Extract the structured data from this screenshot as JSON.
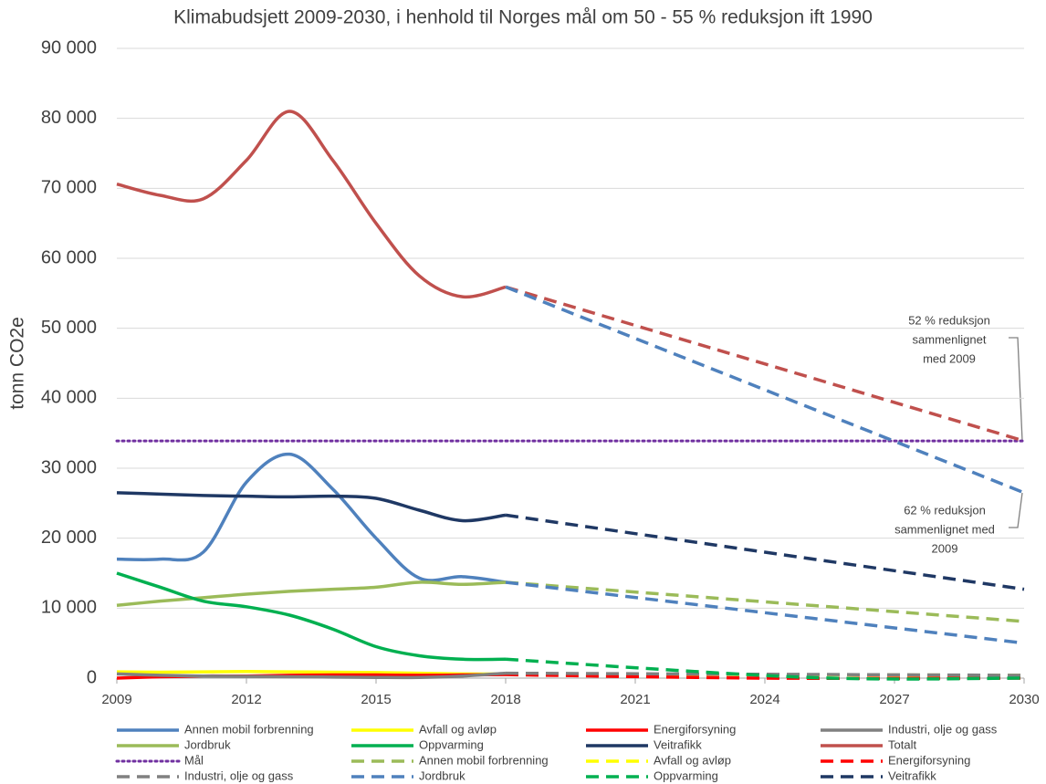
{
  "chart_data": {
    "type": "line",
    "title": "Klimabudsjett 2009-2030, i henhold til Norges mål om 50 - 55 % reduksjon ift 1990",
    "y_label": "tonn CO2e",
    "xlim": [
      2009,
      2030
    ],
    "xticks": [
      2009,
      2012,
      2015,
      2018,
      2021,
      2024,
      2027,
      2030
    ],
    "ylim": [
      0,
      90000
    ],
    "yticks": [
      0,
      {
        "value": 10000,
        "label": "10 000"
      },
      {
        "value": 20000,
        "label": "20 000"
      },
      {
        "value": 30000,
        "label": "30 000"
      },
      {
        "value": 40000,
        "label": "40 000"
      },
      {
        "value": 50000,
        "label": "50 000"
      },
      {
        "value": 60000,
        "label": "60 000"
      },
      {
        "value": 70000,
        "label": "70 000"
      },
      {
        "value": 80000,
        "label": "80 000"
      },
      {
        "value": 90000,
        "label": "90 000"
      }
    ],
    "grid": true,
    "annotations": [
      {
        "lines": [
          "52 % reduksjon",
          "sammenlignet",
          "med 2009"
        ]
      },
      {
        "lines": [
          "62 % reduksjon",
          "sammenlignet med",
          "2009"
        ]
      }
    ],
    "series": [
      {
        "name": "Annen mobil forbrenning",
        "color": "#4f81bd",
        "style": "solid",
        "x": [
          2009,
          2010,
          2011,
          2012,
          2013,
          2014,
          2015,
          2016,
          2017,
          2018
        ],
        "values": [
          17000,
          17000,
          18000,
          28000,
          32000,
          27000,
          20000,
          14300,
          14500,
          13700
        ]
      },
      {
        "name": "Avfall og avløp",
        "color": "#ffff00",
        "style": "solid",
        "x": [
          2009,
          2010,
          2011,
          2012,
          2013,
          2014,
          2015,
          2016,
          2017,
          2018
        ],
        "values": [
          900,
          850,
          900,
          950,
          900,
          850,
          800,
          700,
          600,
          600
        ]
      },
      {
        "name": "Energiforsyning",
        "color": "#ff0000",
        "style": "solid",
        "x": [
          2009,
          2010,
          2011,
          2012,
          2013,
          2014,
          2015,
          2016,
          2017,
          2018
        ],
        "values": [
          0,
          200,
          300,
          300,
          400,
          450,
          450,
          400,
          450,
          500
        ]
      },
      {
        "name": "Industri, olje og gass",
        "color": "#808080",
        "style": "solid",
        "x": [
          2009,
          2010,
          2011,
          2012,
          2013,
          2014,
          2015,
          2016,
          2017,
          2018
        ],
        "values": [
          600,
          400,
          300,
          250,
          200,
          150,
          100,
          100,
          300,
          700
        ]
      },
      {
        "name": "Jordbruk",
        "color": "#9bbb59",
        "style": "solid",
        "x": [
          2009,
          2010,
          2011,
          2012,
          2013,
          2014,
          2015,
          2016,
          2017,
          2018
        ],
        "values": [
          10400,
          11000,
          11500,
          12000,
          12400,
          12700,
          13000,
          13700,
          13400,
          13700
        ]
      },
      {
        "name": "Oppvarming",
        "color": "#00b050",
        "style": "solid",
        "x": [
          2009,
          2010,
          2011,
          2012,
          2013,
          2014,
          2015,
          2016,
          2017,
          2018
        ],
        "values": [
          15000,
          13000,
          11000,
          10200,
          9000,
          7000,
          4500,
          3200,
          2700,
          2700
        ]
      },
      {
        "name": "Veitrafikk",
        "color": "#1f3864",
        "style": "solid",
        "x": [
          2009,
          2010,
          2011,
          2012,
          2013,
          2014,
          2015,
          2016,
          2017,
          2018
        ],
        "values": [
          26500,
          26300,
          26100,
          26000,
          25900,
          26000,
          25700,
          24000,
          22500,
          23300
        ]
      },
      {
        "name": "Totalt",
        "color": "#c0504d",
        "style": "solid",
        "x": [
          2009,
          2010,
          2011,
          2012,
          2013,
          2014,
          2015,
          2016,
          2017,
          2018
        ],
        "values": [
          70600,
          69000,
          68500,
          74000,
          81000,
          74000,
          65000,
          57500,
          54500,
          55900
        ]
      },
      {
        "name": "Mål",
        "color": "#7030a0",
        "style": "dotted",
        "x": [
          2009,
          2030
        ],
        "values": [
          33900,
          33900
        ]
      },
      {
        "name": "Annen mobil forbrenning",
        "color": "#9bbb59",
        "style": "dashed",
        "x": [
          2018,
          2030
        ],
        "values": [
          13700,
          8100
        ]
      },
      {
        "name": "Avfall og avløp",
        "color": "#ffff00",
        "style": "dashed",
        "x": [
          2018,
          2030
        ],
        "values": [
          600,
          400
        ]
      },
      {
        "name": "Energiforsyning",
        "color": "#ff0000",
        "style": "dashed",
        "x": [
          2018,
          2024,
          2030
        ],
        "values": [
          500,
          0,
          0
        ]
      },
      {
        "name": "Industri, olje og gass",
        "color": "#808080",
        "style": "dashed",
        "x": [
          2018,
          2030
        ],
        "values": [
          700,
          400
        ]
      },
      {
        "name": "Jordbruk",
        "color": "#4f81bd",
        "style": "dashed",
        "x": [
          2018,
          2030
        ],
        "values": [
          13700,
          5000
        ]
      },
      {
        "name": "Oppvarming",
        "color": "#00b050",
        "style": "dashed",
        "x": [
          2018,
          2025,
          2030
        ],
        "values": [
          2700,
          100,
          0
        ]
      },
      {
        "name": "Veitrafikk",
        "color": "#1f3864",
        "style": "dashed",
        "x": [
          2018,
          2030
        ],
        "values": [
          23300,
          12700
        ]
      },
      {
        "color": "#c0504d",
        "style": "dashed",
        "x": [
          2018,
          2030
        ],
        "values": [
          55900,
          33900
        ]
      },
      {
        "color": "#4f81bd",
        "style": "dashed",
        "x": [
          2018,
          2030
        ],
        "values": [
          55900,
          26500
        ]
      }
    ]
  }
}
